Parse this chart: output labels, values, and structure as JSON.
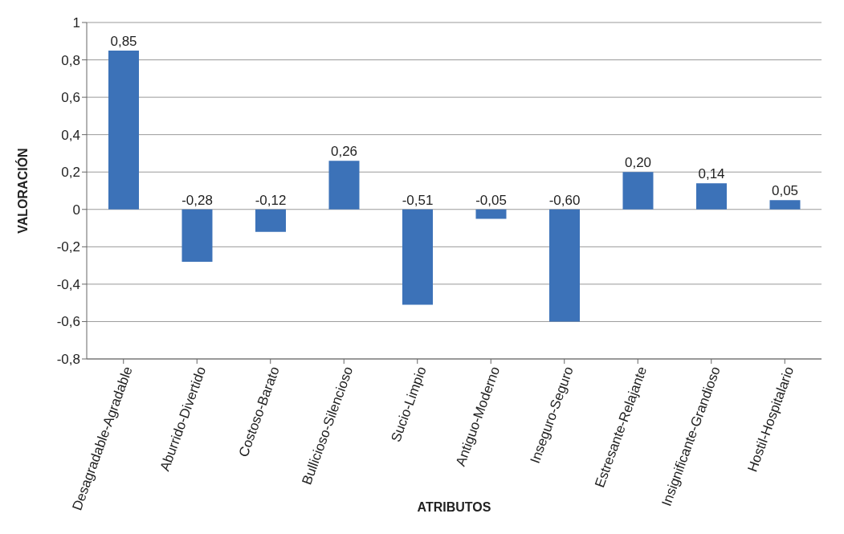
{
  "chart_data": {
    "type": "bar",
    "xlabel": "ATRIBUTOS",
    "ylabel": "VALORACIÓN",
    "categories": [
      "Desagradable-Agradable",
      "Aburrido-Divertido",
      "Costoso-Barato",
      "Bullicioso-Silencioso",
      "Sucio-Limpio",
      "Antiguo-Moderno",
      "Inseguro-Seguro",
      "Estresante-Relajante",
      "Insignificante-Grandioso",
      "Hostil-Hospitalario"
    ],
    "values": [
      0.85,
      -0.28,
      -0.12,
      0.26,
      -0.51,
      -0.05,
      -0.6,
      0.2,
      0.14,
      0.05
    ],
    "value_labels": [
      "0,85",
      "-0,28",
      "-0,12",
      "0,26",
      "-0,51",
      "-0,05",
      "-0,60",
      "0,20",
      "0,14",
      "0,05"
    ],
    "color": "#3c72b8",
    "ylim": [
      -0.8,
      1
    ],
    "yticks": [
      {
        "value": -0.8,
        "label": "-0,8"
      },
      {
        "value": -0.6,
        "label": "-0,6"
      },
      {
        "value": -0.4,
        "label": "-0,4"
      },
      {
        "value": -0.2,
        "label": "-0,2"
      },
      0,
      {
        "value": 0.2,
        "label": "0,2"
      },
      {
        "value": 0.4,
        "label": "0,4"
      },
      {
        "value": 0.6,
        "label": "0,6"
      },
      {
        "value": 0.8,
        "label": "0,8"
      },
      1
    ],
    "grid": "y",
    "legend": false
  }
}
